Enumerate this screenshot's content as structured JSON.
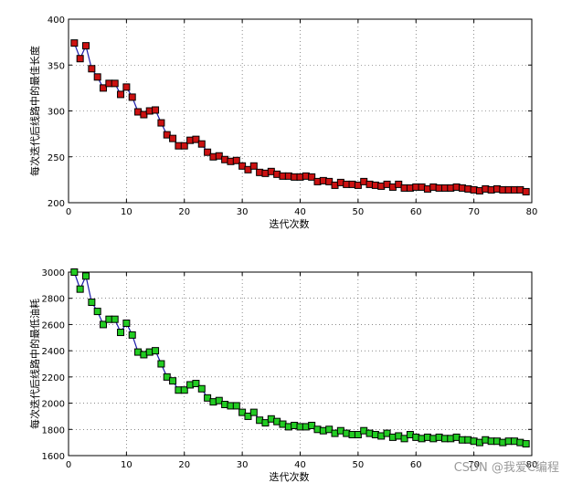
{
  "chart_data": [
    {
      "type": "line",
      "xlabel": "迭代次数",
      "ylabel": "每次迭代后线路中的最佳长度",
      "xlim": [
        0,
        80
      ],
      "ylim": [
        200,
        400
      ],
      "xticks": [
        0,
        10,
        20,
        30,
        40,
        50,
        60,
        70,
        80
      ],
      "yticks": [
        200,
        250,
        300,
        350,
        400
      ],
      "grid": true,
      "line_color": "#1a1aa8",
      "marker": "square",
      "marker_color": "#cc1111",
      "series": [
        {
          "x": [
            1,
            2,
            3,
            4,
            5,
            6,
            7,
            8,
            9,
            10,
            11,
            12,
            13,
            14,
            15,
            16,
            17,
            18,
            19,
            20,
            21,
            22,
            23,
            24,
            25,
            26,
            27,
            28,
            29,
            30,
            31,
            32,
            33,
            34,
            35,
            36,
            37,
            38,
            39,
            40,
            41,
            42,
            43,
            44,
            45,
            46,
            47,
            48,
            49,
            50,
            51,
            52,
            53,
            54,
            55,
            56,
            57,
            58,
            59,
            60,
            61,
            62,
            63,
            64,
            65,
            66,
            67,
            68,
            69,
            70,
            71,
            72,
            73,
            74,
            75,
            76,
            77,
            78,
            79
          ],
          "values": [
            374,
            357,
            371,
            346,
            337,
            325,
            330,
            330,
            318,
            326,
            315,
            299,
            296,
            300,
            301,
            287,
            274,
            270,
            262,
            262,
            268,
            269,
            264,
            255,
            250,
            251,
            247,
            245,
            246,
            240,
            236,
            240,
            233,
            232,
            234,
            231,
            229,
            229,
            228,
            228,
            229,
            228,
            223,
            224,
            223,
            219,
            222,
            220,
            220,
            219,
            223,
            220,
            219,
            218,
            220,
            217,
            220,
            216,
            216,
            217,
            217,
            215,
            217,
            216,
            216,
            216,
            217,
            216,
            215,
            214,
            213,
            215,
            214,
            215,
            214,
            214,
            214,
            214,
            212
          ]
        }
      ]
    },
    {
      "type": "line",
      "xlabel": "迭代次数",
      "ylabel": "每次迭代后线路中的最低油耗",
      "xlim": [
        0,
        80
      ],
      "ylim": [
        1600,
        3000
      ],
      "xticks": [
        0,
        10,
        20,
        30,
        40,
        50,
        60,
        70,
        80
      ],
      "yticks": [
        1600,
        1800,
        2000,
        2200,
        2400,
        2600,
        2800,
        3000
      ],
      "grid": true,
      "line_color": "#1a1aa8",
      "marker": "square",
      "marker_color": "#22cc22",
      "series": [
        {
          "x": [
            1,
            2,
            3,
            4,
            5,
            6,
            7,
            8,
            9,
            10,
            11,
            12,
            13,
            14,
            15,
            16,
            17,
            18,
            19,
            20,
            21,
            22,
            23,
            24,
            25,
            26,
            27,
            28,
            29,
            30,
            31,
            32,
            33,
            34,
            35,
            36,
            37,
            38,
            39,
            40,
            41,
            42,
            43,
            44,
            45,
            46,
            47,
            48,
            49,
            50,
            51,
            52,
            53,
            54,
            55,
            56,
            57,
            58,
            59,
            60,
            61,
            62,
            63,
            64,
            65,
            66,
            67,
            68,
            69,
            70,
            71,
            72,
            73,
            74,
            75,
            76,
            77,
            78,
            79
          ],
          "values": [
            3000,
            2870,
            2970,
            2770,
            2700,
            2600,
            2640,
            2640,
            2540,
            2610,
            2520,
            2390,
            2370,
            2390,
            2400,
            2300,
            2200,
            2170,
            2100,
            2100,
            2140,
            2150,
            2110,
            2040,
            2010,
            2020,
            1990,
            1980,
            1980,
            1930,
            1900,
            1930,
            1870,
            1850,
            1880,
            1860,
            1840,
            1820,
            1830,
            1820,
            1820,
            1830,
            1800,
            1790,
            1800,
            1770,
            1790,
            1770,
            1760,
            1760,
            1790,
            1770,
            1760,
            1750,
            1770,
            1740,
            1750,
            1730,
            1760,
            1740,
            1730,
            1740,
            1730,
            1740,
            1730,
            1730,
            1740,
            1720,
            1720,
            1710,
            1700,
            1720,
            1710,
            1710,
            1700,
            1710,
            1710,
            1700,
            1690
          ]
        }
      ]
    }
  ],
  "watermark": "CSDN @我爱C编程"
}
